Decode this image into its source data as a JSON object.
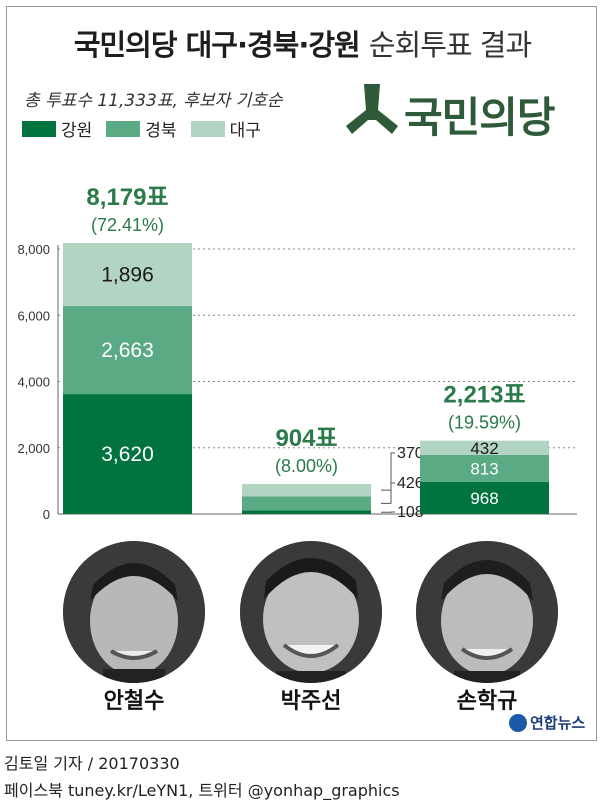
{
  "title": {
    "bold": "국민의당 대구·경북·강원",
    "light": "순회투표 결과"
  },
  "subtitle": "총 투표수 11,333표, 후보자 기호순",
  "legend": [
    {
      "label": "강원",
      "color": "#00733e"
    },
    {
      "label": "경북",
      "color": "#5aaa84"
    },
    {
      "label": "대구",
      "color": "#b2d4c2"
    }
  ],
  "logo": {
    "text": "국민의당",
    "color": "#2e5a3a"
  },
  "chart_data": {
    "type": "bar",
    "stacked": true,
    "categories": [
      "안철수",
      "박주선",
      "손학규"
    ],
    "series": [
      {
        "name": "강원",
        "values": [
          3620,
          108,
          968
        ]
      },
      {
        "name": "경북",
        "values": [
          2663,
          426,
          813
        ]
      },
      {
        "name": "대구",
        "values": [
          1896,
          370,
          432
        ]
      }
    ],
    "value_labels": [
      [
        "3,620",
        "2,663",
        "1,896"
      ],
      [
        "108",
        "426",
        "370"
      ],
      [
        "968",
        "813",
        "432"
      ]
    ],
    "totals": [
      "8,179표",
      "904표",
      "2,213표"
    ],
    "percents": [
      "(72.41%)",
      "(8.00%)",
      "(19.59%)"
    ],
    "ylim": [
      0,
      8000
    ],
    "yticks": [
      0,
      2000,
      4000,
      6000,
      8000
    ],
    "ytick_labels": [
      "0",
      "2,000",
      "4,000",
      "6,000",
      "8,000"
    ],
    "grid": true,
    "accent_color": "#2a7a4a"
  },
  "candidates": [
    {
      "name": "안철수"
    },
    {
      "name": "박주선"
    },
    {
      "name": "손학규"
    }
  ],
  "agency": "연합뉴스",
  "credits": {
    "line1": "김토일 기자 / 20170330",
    "line2": "페이스북 tuney.kr/LeYN1, 트위터 @yonhap_graphics"
  }
}
